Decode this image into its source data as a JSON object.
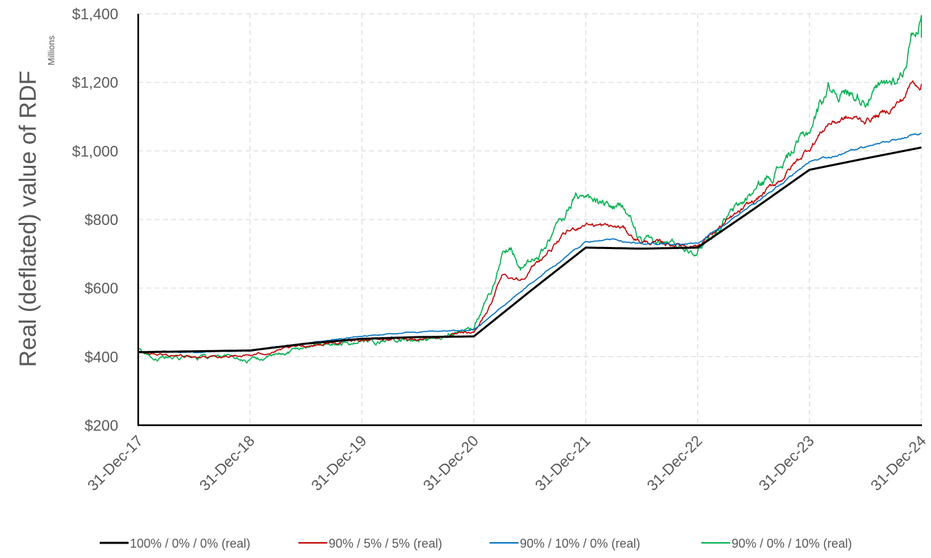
{
  "chart_data": {
    "type": "line",
    "ylabel": "Real (deflated) value of RDF",
    "units_label": "Millions",
    "xlabel": "",
    "ylim": [
      200,
      1400
    ],
    "y_ticks": [
      200,
      400,
      600,
      800,
      1000,
      1200,
      1400
    ],
    "y_tick_labels": [
      "$200",
      "$400",
      "$600",
      "$800",
      "$1,000",
      "$1,200",
      "$1,400"
    ],
    "x_tick_labels": [
      "31-Dec-17",
      "31-Dec-18",
      "31-Dec-19",
      "31-Dec-20",
      "31-Dec-21",
      "31-Dec-22",
      "31-Dec-23",
      "31-Dec-24"
    ],
    "xlim": [
      "31-Dec-17",
      "31-Dec-24"
    ],
    "grid": true,
    "legend_position": "bottom",
    "series": [
      {
        "name": "100% / 0% / 0% (real)",
        "color": "#000000",
        "points": [
          [
            "31-Dec-17",
            413
          ],
          [
            "31-Dec-18",
            418
          ],
          [
            "31-Jun-19",
            438
          ],
          [
            "31-Dec-19",
            452
          ],
          [
            "31-Jun-20",
            457
          ],
          [
            "31-Dec-20",
            459
          ],
          [
            "31-Jun-21",
            590
          ],
          [
            "31-Dec-21",
            718
          ],
          [
            "31-Jun-22",
            715
          ],
          [
            "31-Dec-22",
            718
          ],
          [
            "31-Jun-23",
            830
          ],
          [
            "31-Dec-23",
            945
          ],
          [
            "31-Jun-24",
            978
          ],
          [
            "31-Dec-24",
            1010
          ]
        ]
      },
      {
        "name": "90% / 5% / 5% (real)",
        "color": "#c00000",
        "points": [
          [
            "31-Dec-17",
            412
          ],
          [
            "31-Mar-18",
            404
          ],
          [
            "31-Jun-18",
            402
          ],
          [
            "31-Sep-18",
            402
          ],
          [
            "31-Dec-18",
            403
          ],
          [
            "31-Jun-19",
            432
          ],
          [
            "31-Dec-19",
            450
          ],
          [
            "31-Jun-20",
            453
          ],
          [
            "31-Dec-20",
            468
          ],
          [
            "31-Feb-21",
            560
          ],
          [
            "31-Mar-21",
            640
          ],
          [
            "31-May-21",
            625
          ],
          [
            "31-Jul-21",
            680
          ],
          [
            "31-Oct-21",
            760
          ],
          [
            "31-Dec-21",
            790
          ],
          [
            "31-Feb-22",
            780
          ],
          [
            "31-Apr-22",
            775
          ],
          [
            "31-May-22",
            750
          ],
          [
            "31-Jun-22",
            735
          ],
          [
            "31-Sep-22",
            728
          ],
          [
            "31-Dec-22",
            725
          ],
          [
            "31-Mar-23",
            790
          ],
          [
            "31-Jun-23",
            850
          ],
          [
            "31-Sep-23",
            920
          ],
          [
            "31-Dec-23",
            1010
          ],
          [
            "31-Feb-24",
            1080
          ],
          [
            "31-Apr-24",
            1095
          ],
          [
            "31-Jun-24",
            1090
          ],
          [
            "31-Aug-24",
            1110
          ],
          [
            "31-Oct-24",
            1150
          ],
          [
            "31-Nov-24",
            1200
          ],
          [
            "31-Dec-24",
            1195
          ]
        ]
      },
      {
        "name": "90% / 10% / 0% (real)",
        "color": "#0070c0",
        "points": [
          [
            "31-Dec-17",
            414
          ],
          [
            "31-Jun-18",
            413
          ],
          [
            "31-Dec-18",
            417
          ],
          [
            "31-Jun-19",
            440
          ],
          [
            "31-Dec-19",
            460
          ],
          [
            "31-Jun-20",
            472
          ],
          [
            "31-Dec-20",
            478
          ],
          [
            "31-Jun-21",
            610
          ],
          [
            "31-Dec-21",
            735
          ],
          [
            "31-Mar-22",
            740
          ],
          [
            "31-Jun-22",
            730
          ],
          [
            "31-Sep-22",
            727
          ],
          [
            "31-Dec-22",
            730
          ],
          [
            "31-Jun-23",
            845
          ],
          [
            "31-Dec-23",
            965
          ],
          [
            "31-Jun-24",
            1010
          ],
          [
            "31-Dec-24",
            1052
          ]
        ]
      },
      {
        "name": "90% / 0% / 10% (real)",
        "color": "#00b050",
        "points": [
          [
            "31-Dec-17",
            420
          ],
          [
            "31-Feb-18",
            395
          ],
          [
            "31-Jun-18",
            395
          ],
          [
            "31-Sep-18",
            395
          ],
          [
            "31-Dec-18",
            390
          ],
          [
            "31-Mar-19",
            402
          ],
          [
            "31-Jun-19",
            432
          ],
          [
            "31-Sep-19",
            438
          ],
          [
            "31-Dec-19",
            440
          ],
          [
            "31-Jun-20",
            447
          ],
          [
            "31-Dec-20",
            490
          ],
          [
            "31-Feb-21",
            600
          ],
          [
            "31-Mar-21",
            700
          ],
          [
            "31-Apr-21",
            720
          ],
          [
            "31-May-21",
            660
          ],
          [
            "31-Jul-21",
            690
          ],
          [
            "31-Sep-21",
            780
          ],
          [
            "31-Nov-21",
            880
          ],
          [
            "31-Dec-21",
            860
          ],
          [
            "31-Feb-22",
            840
          ],
          [
            "31-Apr-22",
            835
          ],
          [
            "31-May-22",
            790
          ],
          [
            "31-Jun-22",
            730
          ],
          [
            "31-Sep-22",
            730
          ],
          [
            "31-Dec-22",
            715
          ],
          [
            "31-Mar-23",
            800
          ],
          [
            "31-Jun-23",
            880
          ],
          [
            "31-Sep-23",
            960
          ],
          [
            "31-Dec-23",
            1060
          ],
          [
            "31-Feb-24",
            1190
          ],
          [
            "31-Apr-24",
            1170
          ],
          [
            "31-Jun-24",
            1160
          ],
          [
            "31-Aug-24",
            1180
          ],
          [
            "31-Oct-24",
            1230
          ],
          [
            "31-Nov-24",
            1340
          ],
          [
            "31-Dec-24",
            1390
          ],
          [
            "31-Dec-24",
            1330
          ]
        ]
      }
    ]
  }
}
